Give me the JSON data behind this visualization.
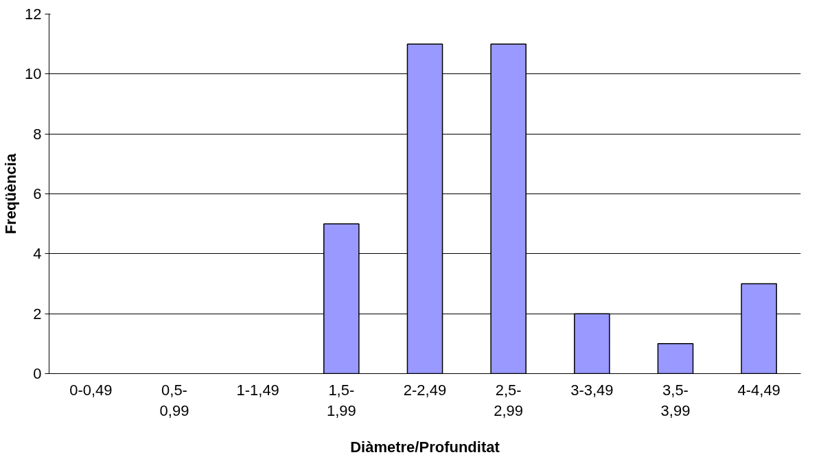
{
  "chart_data": {
    "type": "bar",
    "xlabel": "Diàmetre/Profunditat",
    "ylabel": "Freqüència",
    "categories": [
      "0-0,49",
      "0,5-\n0,99",
      "1-1,49",
      "1,5-\n1,99",
      "2-2,49",
      "2,5-\n2,99",
      "3-3,49",
      "3,5-\n3,99",
      "4-4,49"
    ],
    "values": [
      0,
      0,
      0,
      5,
      11,
      11,
      2,
      1,
      3
    ],
    "color": "#9999ff",
    "ylim": [
      0,
      12
    ],
    "yticks": [
      0,
      2,
      4,
      6,
      8,
      10,
      12
    ],
    "grid": "y"
  }
}
